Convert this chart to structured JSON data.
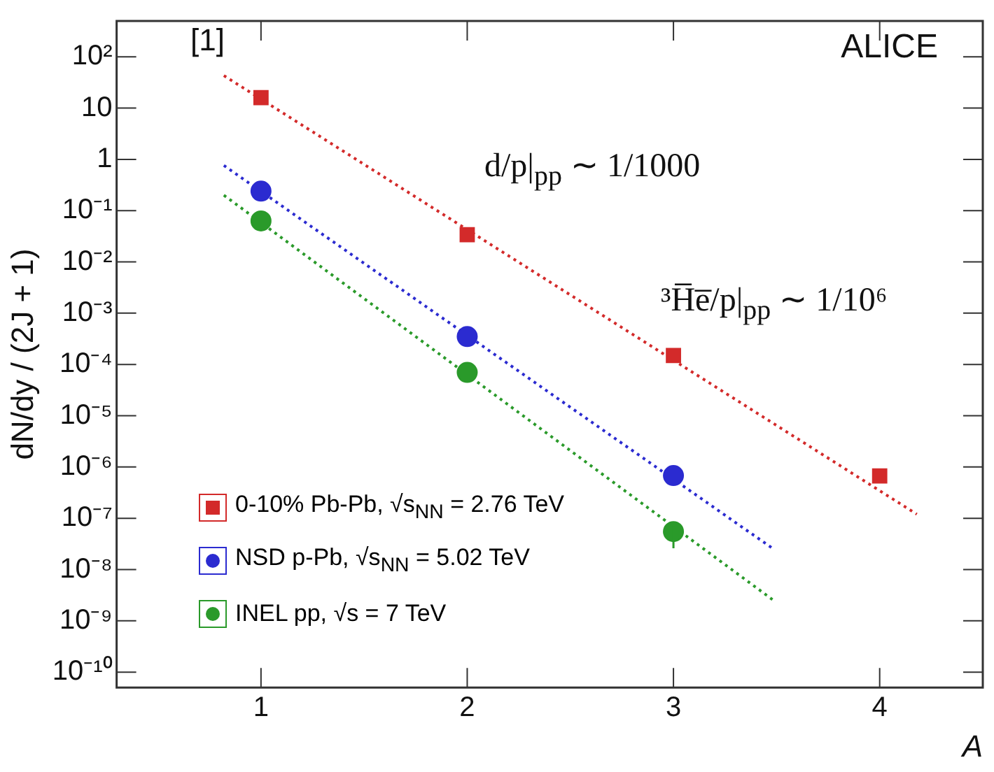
{
  "chart_data": {
    "type": "scatter",
    "xlabel": "A",
    "ylabel": "dN/dy / (2J + 1)",
    "log": "y",
    "xlim": [
      0.3,
      4.5
    ],
    "xticks": [
      1,
      2,
      3,
      4
    ],
    "ylim": [
      5e-11,
      500
    ],
    "yticks": [
      {
        "value": 100,
        "label": "10²"
      },
      10,
      1,
      {
        "value": 0.1,
        "label": "10⁻¹"
      },
      {
        "value": 0.01,
        "label": "10⁻²"
      },
      {
        "value": 0.001,
        "label": "10⁻³"
      },
      {
        "value": 0.0001,
        "label": "10⁻⁴"
      },
      {
        "value": 1e-05,
        "label": "10⁻⁵"
      },
      {
        "value": 1e-06,
        "label": "10⁻⁶"
      },
      {
        "value": 1e-07,
        "label": "10⁻⁷"
      },
      {
        "value": 1e-08,
        "label": "10⁻⁸"
      },
      {
        "value": 1e-09,
        "label": "10⁻⁹"
      },
      {
        "value": 1e-10,
        "label": "10⁻¹⁰"
      }
    ],
    "grid": false,
    "legend": "bottom left",
    "series": [
      {
        "name": "0-10% Pb-Pb, √s$_{NN}$ = 2.76 TeV",
        "color": "#d32a2a",
        "marker": "square",
        "x": [
          1,
          2,
          3,
          4
        ],
        "values": [
          16,
          0.034,
          0.00015,
          6.7e-07
        ]
      },
      {
        "name": "NSD p-Pb, √s$_{NN}$ = 5.02 TeV",
        "color": "#2b2bd0",
        "marker": "circle",
        "x": [
          1,
          2,
          3
        ],
        "values": [
          0.24,
          0.00035,
          6.8e-07
        ]
      },
      {
        "name": "INEL pp, √s = 7 TeV",
        "color": "#2a9a2a",
        "marker": "circle",
        "x": [
          1,
          2,
          3
        ],
        "values": [
          0.063,
          7e-05,
          5.5e-08
        ],
        "errors": [
          null,
          null,
          [
            2.6e-08,
            7e-08
          ]
        ]
      },
      {
        "type": "line",
        "color": "#d32a2a",
        "line_style": "dotted",
        "marker": "none",
        "x": [
          0.82,
          4.18
        ],
        "values": [
          43,
          1.2e-07
        ]
      },
      {
        "type": "line",
        "color": "#2b2bd0",
        "line_style": "dotted",
        "marker": "none",
        "x": [
          0.82,
          3.48
        ],
        "values": [
          0.76,
          2.6e-08
        ]
      },
      {
        "type": "line",
        "color": "#2a9a2a",
        "line_style": "dotted",
        "marker": "none",
        "x": [
          0.82,
          3.48
        ],
        "values": [
          0.2,
          2.6e-09
        ]
      }
    ],
    "annotations": [
      "[1]",
      "ALICE",
      "d/p|$_{pp}$ ∼ 1/1000",
      "³H̅e̅/p|$_{pp}$ ∼ 1/10⁶"
    ]
  }
}
